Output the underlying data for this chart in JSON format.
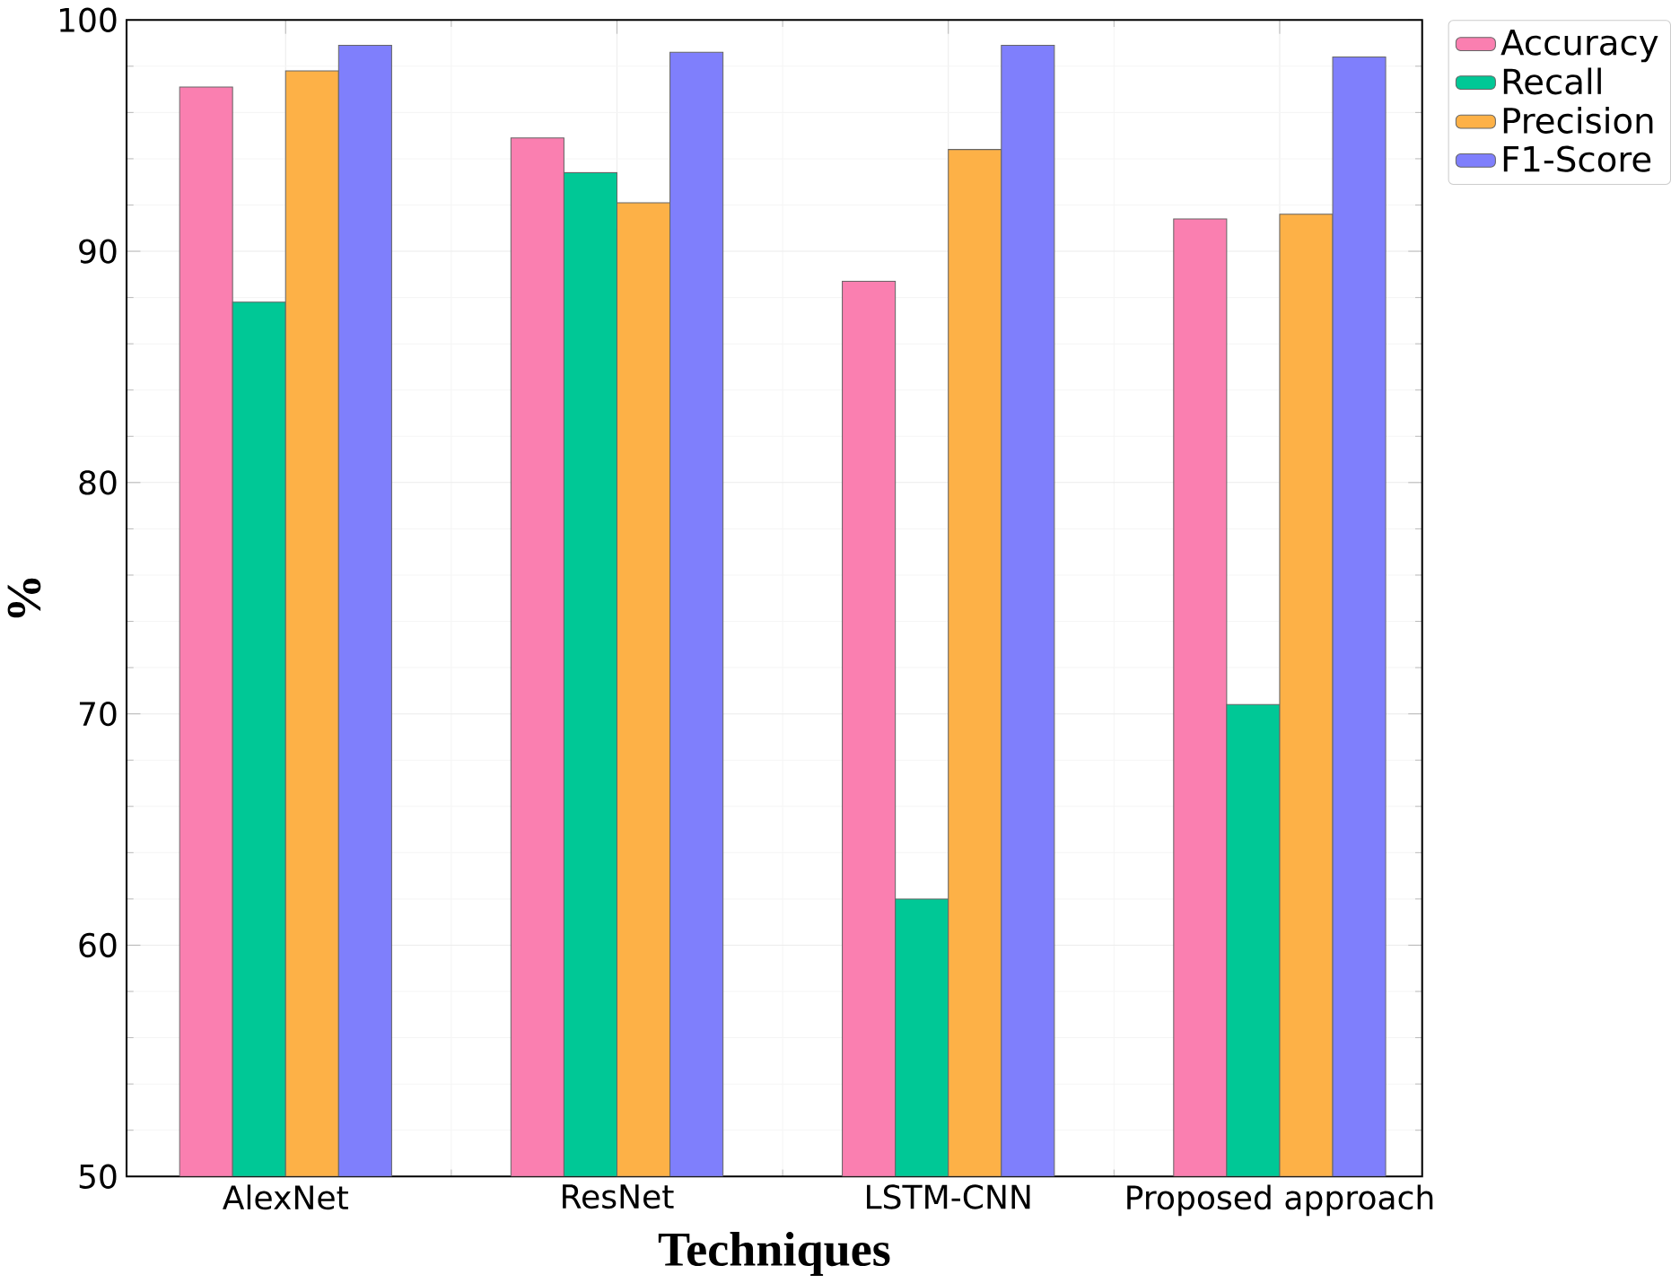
{
  "chart_data": {
    "type": "bar",
    "xlabel": "Techniques",
    "ylabel": "%",
    "categories": [
      "AlexNet",
      "ResNet",
      "LSTM-CNN",
      "Proposed approach"
    ],
    "series": [
      {
        "name": "Accuracy",
        "color": "#fa7fb0",
        "values": [
          97.1,
          94.9,
          88.7,
          91.4
        ]
      },
      {
        "name": "Recall",
        "color": "#00c896",
        "values": [
          87.8,
          93.4,
          62.0,
          70.4
        ]
      },
      {
        "name": "Precision",
        "color": "#fdb147",
        "values": [
          97.8,
          92.1,
          94.4,
          91.6
        ]
      },
      {
        "name": "F1-Score",
        "color": "#7f7ffc",
        "values": [
          98.9,
          98.6,
          98.9,
          98.4
        ]
      }
    ],
    "ylim": [
      50,
      100
    ],
    "yticks": [
      50,
      60,
      70,
      80,
      90,
      100
    ],
    "grid": true,
    "legend": "right"
  }
}
